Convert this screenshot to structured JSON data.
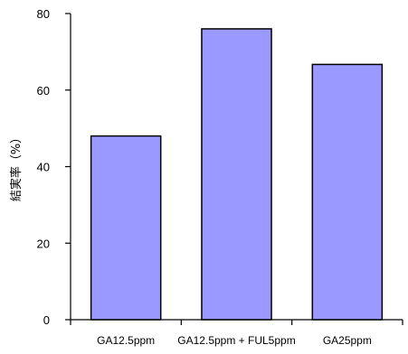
{
  "chart_data": {
    "type": "bar",
    "categories": [
      "GA12.5ppm",
      "GA12.5ppm + FUL5ppm",
      "GA25ppm"
    ],
    "values": [
      48,
      76,
      66.7
    ],
    "ylabel": "結実率（%）",
    "xlabel": "",
    "ylim": [
      0,
      80
    ],
    "yticks": [
      0,
      20,
      40,
      60,
      80
    ],
    "grid": false,
    "legend": "none",
    "bar_color": "#9999ff",
    "edge_color": "#000000"
  }
}
